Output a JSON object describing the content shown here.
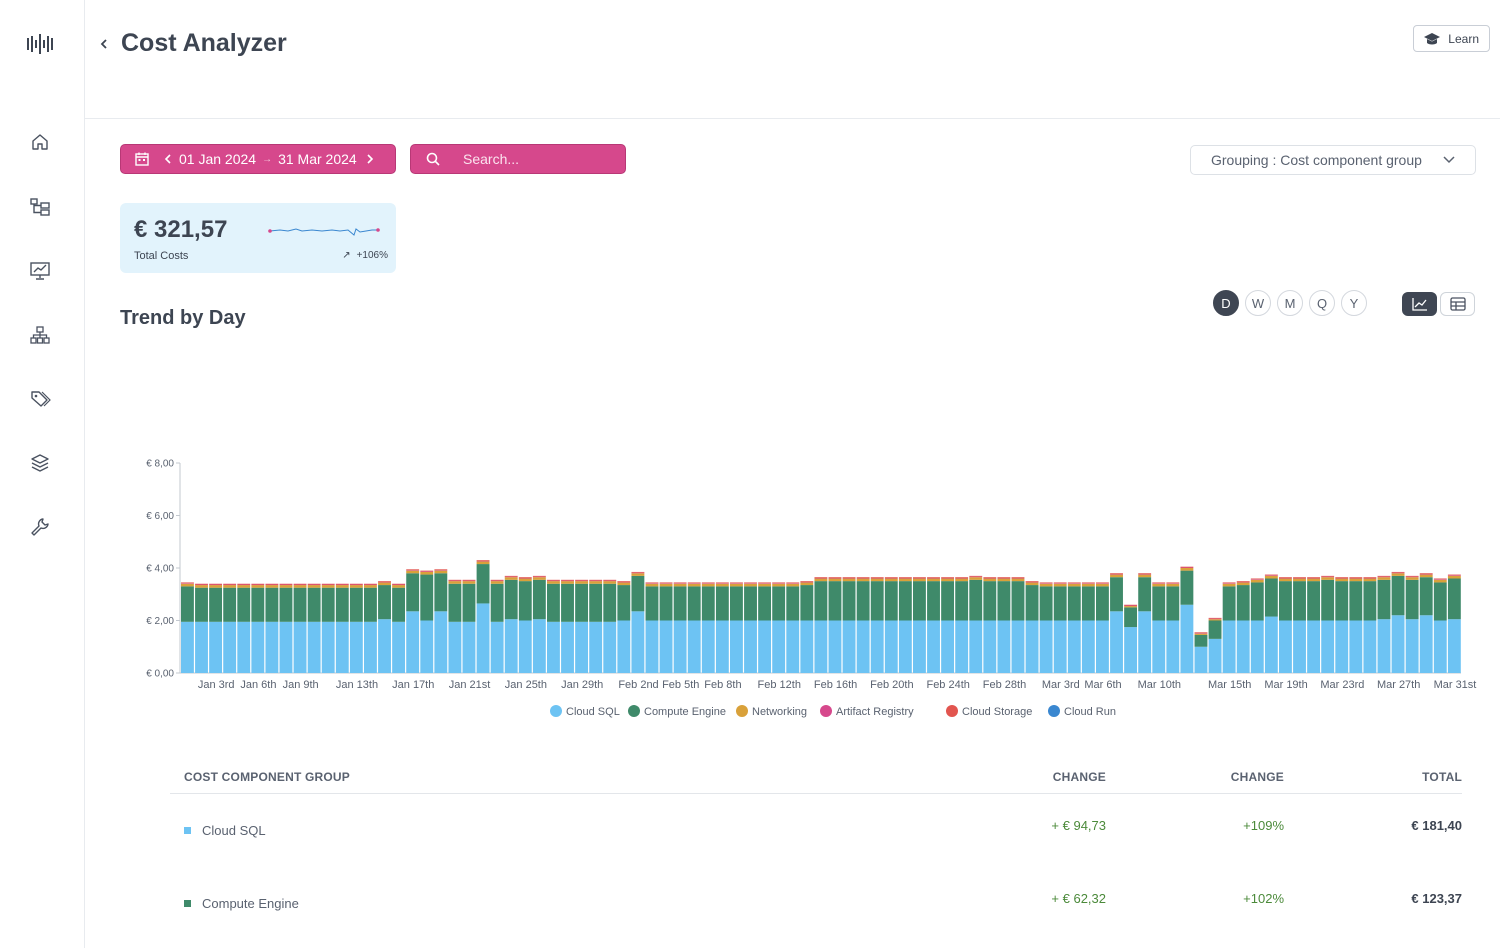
{
  "app": {
    "title": "Cost Analyzer",
    "learn_label": "Learn"
  },
  "sidebar": {
    "items": [
      {
        "icon": "home-icon"
      },
      {
        "icon": "hierarchy-icon"
      },
      {
        "icon": "presentation-chart-icon"
      },
      {
        "icon": "org-chart-icon"
      },
      {
        "icon": "tags-icon"
      },
      {
        "icon": "layers-icon"
      },
      {
        "icon": "wrench-icon"
      }
    ]
  },
  "filters": {
    "date_start": "01 Jan 2024",
    "date_end": "31 Mar 2024",
    "search_placeholder": "Search...",
    "grouping_label": "Grouping : Cost component group"
  },
  "kpi": {
    "value": "€ 321,57",
    "label": "Total Costs",
    "change": "+106%"
  },
  "trend": {
    "title": "Trend by Day",
    "periods": [
      "D",
      "W",
      "M",
      "Q",
      "Y"
    ],
    "active_period": "D",
    "active_view": "chart"
  },
  "chart_data": {
    "type": "bar",
    "stacked": true,
    "ylim": [
      0,
      8
    ],
    "yticks": [
      "€ 0,00",
      "€ 2,00",
      "€ 4,00",
      "€ 6,00",
      "€ 8,00"
    ],
    "ytick_values": [
      0,
      2,
      4,
      6,
      8
    ],
    "xticks": [
      "Jan 3rd",
      "Jan 6th",
      "Jan 9th",
      "Jan 13th",
      "Jan 17th",
      "Jan 21st",
      "Jan 25th",
      "Jan 29th",
      "Feb 2nd",
      "Feb 5th",
      "Feb 8th",
      "Feb 12th",
      "Feb 16th",
      "Feb 20th",
      "Feb 24th",
      "Feb 28th",
      "Mar 3rd",
      "Mar 6th",
      "Mar 10th",
      "Mar 15th",
      "Mar 19th",
      "Mar 23rd",
      "Mar 27th",
      "Mar 31st"
    ],
    "xtick_days": [
      2,
      5,
      8,
      12,
      16,
      20,
      24,
      28,
      32,
      35,
      38,
      42,
      46,
      50,
      54,
      58,
      62,
      65,
      69,
      74,
      78,
      82,
      86,
      90
    ],
    "legend_position": "bottom",
    "series": [
      {
        "name": "Cloud SQL",
        "color": "#6dc3f3",
        "values": [
          1.95,
          1.95,
          1.95,
          1.95,
          1.95,
          1.95,
          1.95,
          1.95,
          1.95,
          1.95,
          1.95,
          1.95,
          1.95,
          1.95,
          2.05,
          1.95,
          2.35,
          2.0,
          2.35,
          1.95,
          1.95,
          2.65,
          1.95,
          2.05,
          2.0,
          2.05,
          1.95,
          1.95,
          1.95,
          1.95,
          1.95,
          2.0,
          2.35,
          2.0,
          2.0,
          2.0,
          2.0,
          2.0,
          2.0,
          2.0,
          2.0,
          2.0,
          2.0,
          2.0,
          2.0,
          2.0,
          2.0,
          2.0,
          2.0,
          2.0,
          2.0,
          2.0,
          2.0,
          2.0,
          2.0,
          2.0,
          2.0,
          2.0,
          2.0,
          2.0,
          2.0,
          2.0,
          2.0,
          2.0,
          2.0,
          2.0,
          2.35,
          1.75,
          2.35,
          2.0,
          2.0,
          2.6,
          1.0,
          1.3,
          2.0,
          2.0,
          2.0,
          2.15,
          2.0,
          2.0,
          2.0,
          2.0,
          2.0,
          2.0,
          2.0,
          2.05,
          2.2,
          2.05,
          2.2,
          2.0,
          2.05
        ]
      },
      {
        "name": "Compute Engine",
        "color": "#3f8a6a",
        "values": [
          1.35,
          1.3,
          1.3,
          1.3,
          1.3,
          1.3,
          1.3,
          1.3,
          1.3,
          1.3,
          1.3,
          1.3,
          1.3,
          1.3,
          1.3,
          1.3,
          1.45,
          1.75,
          1.45,
          1.45,
          1.45,
          1.5,
          1.45,
          1.5,
          1.5,
          1.5,
          1.45,
          1.45,
          1.45,
          1.45,
          1.45,
          1.35,
          1.35,
          1.3,
          1.3,
          1.3,
          1.3,
          1.3,
          1.3,
          1.3,
          1.3,
          1.3,
          1.3,
          1.3,
          1.35,
          1.5,
          1.5,
          1.5,
          1.5,
          1.5,
          1.5,
          1.5,
          1.5,
          1.5,
          1.5,
          1.5,
          1.55,
          1.5,
          1.5,
          1.5,
          1.35,
          1.3,
          1.3,
          1.3,
          1.3,
          1.3,
          1.3,
          0.75,
          1.3,
          1.3,
          1.3,
          1.3,
          0.45,
          0.7,
          1.3,
          1.35,
          1.45,
          1.45,
          1.5,
          1.5,
          1.5,
          1.55,
          1.5,
          1.5,
          1.5,
          1.5,
          1.5,
          1.5,
          1.45,
          1.45,
          1.55
        ]
      },
      {
        "name": "Networking",
        "color": "#d9a13a",
        "values": [
          0.1,
          0.1,
          0.1,
          0.1,
          0.1,
          0.1,
          0.1,
          0.1,
          0.1,
          0.1,
          0.1,
          0.1,
          0.1,
          0.1,
          0.1,
          0.1,
          0.1,
          0.1,
          0.1,
          0.1,
          0.1,
          0.1,
          0.1,
          0.1,
          0.1,
          0.1,
          0.1,
          0.1,
          0.1,
          0.1,
          0.1,
          0.1,
          0.1,
          0.1,
          0.1,
          0.1,
          0.1,
          0.1,
          0.1,
          0.1,
          0.1,
          0.1,
          0.1,
          0.1,
          0.1,
          0.1,
          0.1,
          0.1,
          0.1,
          0.1,
          0.1,
          0.1,
          0.1,
          0.1,
          0.1,
          0.1,
          0.1,
          0.1,
          0.1,
          0.1,
          0.1,
          0.1,
          0.1,
          0.1,
          0.1,
          0.1,
          0.1,
          0.05,
          0.1,
          0.1,
          0.1,
          0.1,
          0.05,
          0.05,
          0.1,
          0.1,
          0.1,
          0.1,
          0.1,
          0.1,
          0.1,
          0.1,
          0.1,
          0.1,
          0.1,
          0.1,
          0.1,
          0.1,
          0.1,
          0.1,
          0.1
        ]
      },
      {
        "name": "Artifact Registry",
        "color": "#d6488c",
        "values": [
          0.02,
          0.02,
          0.02,
          0.02,
          0.02,
          0.02,
          0.02,
          0.02,
          0.02,
          0.02,
          0.02,
          0.02,
          0.02,
          0.02,
          0.02,
          0.02,
          0.02,
          0.02,
          0.02,
          0.02,
          0.02,
          0.02,
          0.02,
          0.02,
          0.02,
          0.02,
          0.02,
          0.02,
          0.02,
          0.02,
          0.02,
          0.02,
          0.02,
          0.02,
          0.02,
          0.02,
          0.02,
          0.02,
          0.02,
          0.02,
          0.02,
          0.02,
          0.02,
          0.02,
          0.02,
          0.02,
          0.02,
          0.02,
          0.02,
          0.02,
          0.02,
          0.02,
          0.02,
          0.02,
          0.02,
          0.02,
          0.02,
          0.02,
          0.02,
          0.02,
          0.02,
          0.02,
          0.02,
          0.02,
          0.02,
          0.02,
          0.02,
          0.02,
          0.02,
          0.02,
          0.02,
          0.02,
          0.02,
          0.02,
          0.02,
          0.02,
          0.02,
          0.02,
          0.02,
          0.02,
          0.02,
          0.02,
          0.02,
          0.02,
          0.02,
          0.02,
          0.02,
          0.02,
          0.02,
          0.02,
          0.02
        ]
      },
      {
        "name": "Cloud Storage",
        "color": "#e2554f",
        "values": [
          0.03,
          0.03,
          0.03,
          0.03,
          0.03,
          0.03,
          0.03,
          0.03,
          0.03,
          0.03,
          0.03,
          0.03,
          0.03,
          0.03,
          0.03,
          0.03,
          0.03,
          0.03,
          0.03,
          0.03,
          0.03,
          0.03,
          0.03,
          0.03,
          0.03,
          0.03,
          0.03,
          0.03,
          0.03,
          0.03,
          0.03,
          0.03,
          0.03,
          0.03,
          0.03,
          0.03,
          0.03,
          0.03,
          0.03,
          0.03,
          0.03,
          0.03,
          0.03,
          0.03,
          0.03,
          0.03,
          0.03,
          0.03,
          0.03,
          0.03,
          0.03,
          0.03,
          0.03,
          0.03,
          0.03,
          0.03,
          0.03,
          0.03,
          0.03,
          0.03,
          0.03,
          0.03,
          0.03,
          0.03,
          0.03,
          0.03,
          0.03,
          0.03,
          0.03,
          0.03,
          0.03,
          0.03,
          0.03,
          0.03,
          0.03,
          0.03,
          0.03,
          0.03,
          0.03,
          0.03,
          0.03,
          0.03,
          0.03,
          0.03,
          0.03,
          0.03,
          0.03,
          0.03,
          0.03,
          0.03,
          0.03
        ]
      },
      {
        "name": "Cloud Run",
        "color": "#3a87d0",
        "values": [
          0,
          0,
          0,
          0,
          0,
          0,
          0,
          0,
          0,
          0,
          0,
          0,
          0,
          0,
          0,
          0,
          0,
          0,
          0,
          0,
          0,
          0,
          0,
          0,
          0,
          0,
          0,
          0,
          0,
          0,
          0,
          0,
          0,
          0,
          0,
          0,
          0,
          0,
          0,
          0,
          0,
          0,
          0,
          0,
          0,
          0,
          0,
          0,
          0,
          0,
          0,
          0,
          0,
          0,
          0,
          0,
          0,
          0,
          0,
          0,
          0,
          0,
          0,
          0,
          0,
          0,
          0,
          0,
          0,
          0,
          0,
          0,
          0,
          0,
          0,
          0,
          0,
          0,
          0,
          0,
          0,
          0,
          0,
          0,
          0,
          0,
          0,
          0,
          0,
          0,
          0
        ]
      }
    ]
  },
  "table": {
    "headers": {
      "group": "COST COMPONENT GROUP",
      "change_abs": "CHANGE",
      "change_pct": "CHANGE",
      "total": "TOTAL"
    },
    "rows": [
      {
        "name": "Cloud SQL",
        "color": "#6dc3f3",
        "change_abs": "+ € 94,73",
        "change_pct": "+109%",
        "total": "€ 181,40"
      },
      {
        "name": "Compute Engine",
        "color": "#3f8a6a",
        "change_abs": "+ € 62,32",
        "change_pct": "+102%",
        "total": "€ 123,37"
      }
    ]
  }
}
